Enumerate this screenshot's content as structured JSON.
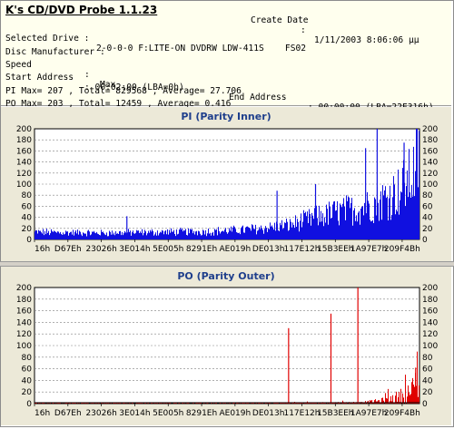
{
  "app": {
    "title": "K's CD/DVD Probe 1.1.23"
  },
  "info": {
    "create_date_label": "Create Date",
    "create_date_sep": ":",
    "create_date_value": "1/11/2003 8:06:06 µµ",
    "drive_label": "Selected Drive :",
    "drive_value": "2-0-0-0 F:LITE-ON DVDRW LDW-411S    FS02",
    "manufacturer_label": "Disc Manufacturer :",
    "speed_label": "Speed",
    "speed_sep": ":",
    "speed_value": "Max",
    "start_label": "Start Address",
    "start_value": ": 00:02:00 (LBA=0h)",
    "end_label": "End Address",
    "end_value": ": 00:00:00 (LBA=22E316h)",
    "pi_summary": "PI Max= 207 , Total= 829568 , Average= 27.706",
    "po_summary": "PO Max= 203 , Total= 12459 , Average= 0.416"
  },
  "chart_data": [
    {
      "type": "area",
      "title": "PI (Parity Inner)",
      "ylim": [
        0,
        200
      ],
      "y_ticks": [
        "0",
        "20",
        "40",
        "60",
        "80",
        "100",
        "120",
        "140",
        "160",
        "180",
        "200"
      ],
      "x_ticks": [
        "16h",
        "D67Eh",
        "23026h",
        "3E014h",
        "5E005h",
        "8291Eh",
        "AE019h",
        "DE013h",
        "117E12h",
        "15B3EEh",
        "1A97E7h",
        "209F4Bh"
      ],
      "grid": true,
      "color": "#1010e0",
      "baseline": [
        {
          "x": 0.0,
          "y": 14
        },
        {
          "x": 0.08,
          "y": 13
        },
        {
          "x": 0.17,
          "y": 12
        },
        {
          "x": 0.25,
          "y": 13
        },
        {
          "x": 0.33,
          "y": 14
        },
        {
          "x": 0.42,
          "y": 15
        },
        {
          "x": 0.5,
          "y": 17
        },
        {
          "x": 0.58,
          "y": 22
        },
        {
          "x": 0.66,
          "y": 30
        },
        {
          "x": 0.72,
          "y": 45
        },
        {
          "x": 0.78,
          "y": 58
        },
        {
          "x": 0.84,
          "y": 68
        },
        {
          "x": 0.88,
          "y": 78
        },
        {
          "x": 0.92,
          "y": 95
        },
        {
          "x": 0.95,
          "y": 110
        },
        {
          "x": 0.98,
          "y": 140
        },
        {
          "x": 1.0,
          "y": 190
        }
      ],
      "spikes": [
        {
          "x": 0.24,
          "y": 42
        },
        {
          "x": 0.63,
          "y": 88
        },
        {
          "x": 0.73,
          "y": 100
        },
        {
          "x": 0.86,
          "y": 165
        },
        {
          "x": 0.89,
          "y": 207
        },
        {
          "x": 0.96,
          "y": 175
        }
      ]
    },
    {
      "type": "area",
      "title": "PO (Parity Outer)",
      "ylim": [
        0,
        200
      ],
      "y_ticks": [
        "0",
        "20",
        "40",
        "60",
        "80",
        "100",
        "120",
        "140",
        "160",
        "180",
        "200"
      ],
      "x_ticks": [
        "16h",
        "D67Eh",
        "23026h",
        "3E014h",
        "5E005h",
        "8291Eh",
        "AE019h",
        "DE013h",
        "117E12h",
        "15B3EEh",
        "1A97E7h",
        "209F4Bh"
      ],
      "grid": true,
      "color": "#e00000",
      "baseline": [
        {
          "x": 0.0,
          "y": 1
        },
        {
          "x": 0.5,
          "y": 1
        },
        {
          "x": 0.7,
          "y": 2
        },
        {
          "x": 0.85,
          "y": 3
        },
        {
          "x": 0.9,
          "y": 8
        },
        {
          "x": 0.94,
          "y": 18
        },
        {
          "x": 0.97,
          "y": 30
        },
        {
          "x": 1.0,
          "y": 55
        }
      ],
      "spikes": [
        {
          "x": 0.66,
          "y": 130
        },
        {
          "x": 0.77,
          "y": 155
        },
        {
          "x": 0.84,
          "y": 203
        },
        {
          "x": 0.99,
          "y": 62
        }
      ]
    }
  ]
}
